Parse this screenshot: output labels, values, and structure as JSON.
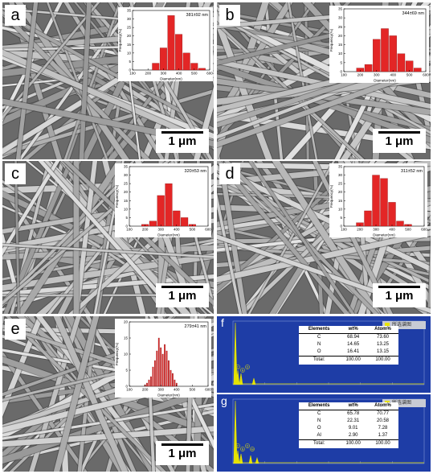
{
  "colors": {
    "bar": "#e32626",
    "eds_bg": "#1e3da6",
    "eds_peak": "#e6e300",
    "sem_base": "#6a6a6a"
  },
  "sem_panels": [
    {
      "label": "a",
      "scale": "1 μm",
      "inset_title": "381±92 nm",
      "ylabel": "Frequency(%)",
      "xlabel": "Diameter(nm)",
      "yticks": [
        "0",
        "5",
        "10",
        "15",
        "20",
        "25",
        "30",
        "35"
      ],
      "xticks": [
        "100",
        "200",
        "300",
        "400",
        "500",
        "600"
      ]
    },
    {
      "label": "b",
      "scale": "1 μm",
      "inset_title": "344±69 nm",
      "ylabel": "Frequency(%)",
      "xlabel": "Diameter(nm)",
      "yticks": [
        "0",
        "5",
        "10",
        "15",
        "20",
        "25",
        "30",
        "35"
      ],
      "xticks": [
        "100",
        "200",
        "300",
        "400",
        "500",
        "600"
      ]
    },
    {
      "label": "c",
      "scale": "1 μm",
      "inset_title": "320±53 nm",
      "ylabel": "Frequency(%)",
      "xlabel": "Diameter(nm)",
      "yticks": [
        "0",
        "5",
        "10",
        "15",
        "20",
        "25",
        "30",
        "35"
      ],
      "xticks": [
        "100",
        "200",
        "300",
        "400",
        "500",
        "600"
      ]
    },
    {
      "label": "d",
      "scale": "1 μm",
      "inset_title": "311±52 nm",
      "ylabel": "Frequency(%)",
      "xlabel": "Diameter(nm)",
      "yticks": [
        "0",
        "5",
        "10",
        "15",
        "20",
        "25",
        "30",
        "35"
      ],
      "xticks": [
        "100",
        "200",
        "300",
        "400",
        "500",
        "600"
      ]
    },
    {
      "label": "e",
      "scale": "1 μm",
      "inset_title": "279±41 nm",
      "ylabel": "Frequency(%)",
      "xlabel": "Diameter(nm)",
      "yticks": [
        "0",
        "5",
        "10",
        "15",
        "20"
      ],
      "xticks": [
        "100",
        "200",
        "300",
        "400",
        "500",
        "600"
      ]
    }
  ],
  "chart_data": [
    {
      "type": "bar",
      "title": "381±92 nm",
      "xlabel": "Diameter(nm)",
      "ylabel": "Frequency(%)",
      "xlim": [
        100,
        600
      ],
      "ylim": [
        0,
        35
      ],
      "x": [
        250,
        300,
        350,
        400,
        450,
        500,
        550
      ],
      "values": [
        4,
        13,
        32,
        21,
        10,
        4,
        1
      ]
    },
    {
      "type": "bar",
      "title": "344±69 nm",
      "xlabel": "Diameter(nm)",
      "ylabel": "Frequency(%)",
      "xlim": [
        100,
        600
      ],
      "ylim": [
        0,
        35
      ],
      "x": [
        200,
        250,
        300,
        350,
        400,
        450,
        500,
        550
      ],
      "values": [
        2,
        4,
        18,
        24,
        20,
        10,
        6,
        2
      ]
    },
    {
      "type": "bar",
      "title": "320±53 nm",
      "xlabel": "Diameter(nm)",
      "ylabel": "Frequency(%)",
      "xlim": [
        100,
        600
      ],
      "ylim": [
        0,
        35
      ],
      "x": [
        200,
        250,
        300,
        350,
        400,
        450,
        500
      ],
      "values": [
        1,
        3,
        18,
        25,
        9,
        5,
        1
      ]
    },
    {
      "type": "bar",
      "title": "311±52 nm",
      "xlabel": "Diameter(nm)",
      "ylabel": "Frequency(%)",
      "xlim": [
        100,
        600
      ],
      "ylim": [
        0,
        35
      ],
      "x": [
        200,
        250,
        300,
        350,
        400,
        450,
        500
      ],
      "values": [
        2,
        9,
        30,
        28,
        14,
        3,
        1
      ]
    },
    {
      "type": "bar",
      "title": "279±41 nm",
      "xlabel": "Diameter(nm)",
      "ylabel": "Frequency(%)",
      "xlim": [
        100,
        600
      ],
      "ylim": [
        0,
        20
      ],
      "x": [
        200,
        212.5,
        225,
        237.5,
        250,
        262.5,
        275,
        287.5,
        300,
        312.5,
        325,
        337.5,
        350,
        362.5,
        375,
        387.5,
        400
      ],
      "values": [
        0.5,
        1,
        2,
        3,
        6,
        8,
        11,
        15,
        12,
        10,
        13,
        11,
        8,
        5,
        4,
        2,
        1
      ]
    }
  ],
  "eds_panels": [
    {
      "label": "f",
      "legend": "所选谱图",
      "table_header": [
        "Elements",
        "wt%",
        "Atom%"
      ],
      "rows": [
        [
          "C",
          "68.94",
          "73.60"
        ],
        [
          "N",
          "14.65",
          "13.25"
        ],
        [
          "O",
          "16.41",
          "13.15"
        ]
      ],
      "total": [
        "Total:",
        "100.00",
        "100.00"
      ],
      "peak_labels": [
        "C",
        "N",
        "O"
      ]
    },
    {
      "label": "g",
      "legend": "所选谱图",
      "table_header": [
        "Elements",
        "wt%",
        "Atom%"
      ],
      "rows": [
        [
          "C",
          "65.78",
          "70.77"
        ],
        [
          "N",
          "22.31",
          "20.58"
        ],
        [
          "O",
          "9.01",
          "7.28"
        ],
        [
          "Al",
          "2.90",
          "1.37"
        ]
      ],
      "total": [
        "Total:",
        "100.00",
        "100.00"
      ],
      "peak_labels": [
        "C",
        "N",
        "O",
        "Al"
      ]
    }
  ]
}
